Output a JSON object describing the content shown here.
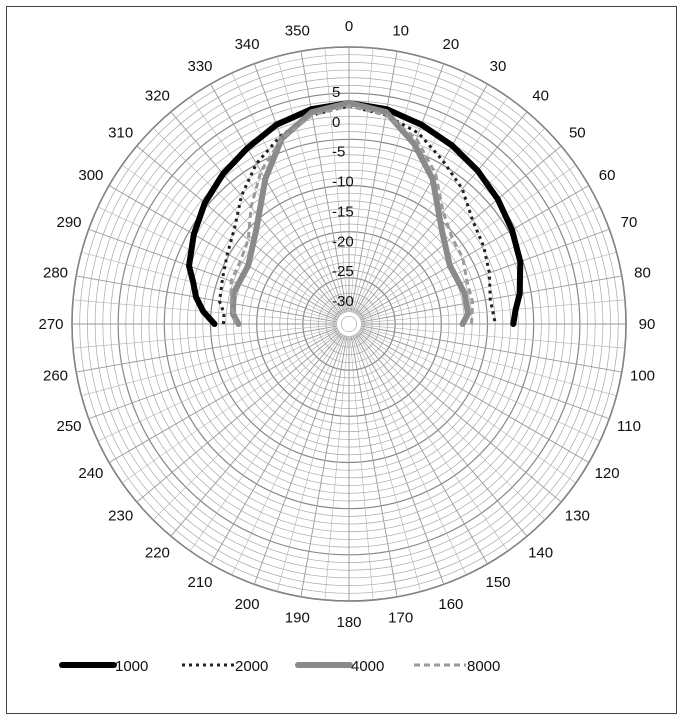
{
  "chart_data": {
    "type": "polar-line",
    "theta_unit": "degrees",
    "theta_direction": "clockwise",
    "theta_zero": "top",
    "theta_ticks": [
      "0",
      "10",
      "20",
      "30",
      "40",
      "50",
      "60",
      "70",
      "80",
      "90",
      "100",
      "110",
      "120",
      "130",
      "140",
      "150",
      "160",
      "170",
      "180",
      "190",
      "200",
      "210",
      "220",
      "230",
      "240",
      "250",
      "260",
      "270",
      "280",
      "290",
      "300",
      "310",
      "320",
      "330",
      "340",
      "350"
    ],
    "r_ticks": [
      "5",
      "0",
      "-5",
      "-10",
      "-15",
      "-20",
      "-25",
      "-30"
    ],
    "r_range": [
      -30,
      5
    ],
    "grid": true,
    "legend_position": "bottom",
    "series": [
      {
        "name": "1000",
        "color": "#000000",
        "style": "solid-thick",
        "points": [
          [
            270,
            -11.5
          ],
          [
            275,
            -9.5
          ],
          [
            280,
            -8
          ],
          [
            285,
            -7
          ],
          [
            290,
            -5.5
          ],
          [
            300,
            -4
          ],
          [
            310,
            -2.5
          ],
          [
            320,
            -1.2
          ],
          [
            330,
            0
          ],
          [
            340,
            1.5
          ],
          [
            350,
            2.5
          ],
          [
            0,
            3
          ],
          [
            10,
            2.5
          ],
          [
            20,
            1.5
          ],
          [
            30,
            0.5
          ],
          [
            40,
            -0.5
          ],
          [
            50,
            -1.5
          ],
          [
            60,
            -2.5
          ],
          [
            70,
            -3.5
          ],
          [
            80,
            -5
          ],
          [
            85,
            -6
          ],
          [
            90,
            -6.5
          ]
        ]
      },
      {
        "name": "2000",
        "color": "#222222",
        "style": "dotted",
        "points": [
          [
            270,
            -13
          ],
          [
            275,
            -13
          ],
          [
            280,
            -12
          ],
          [
            290,
            -11.5
          ],
          [
            300,
            -10.5
          ],
          [
            310,
            -9
          ],
          [
            320,
            -6
          ],
          [
            330,
            -3
          ],
          [
            340,
            -0.5
          ],
          [
            350,
            1.5
          ],
          [
            0,
            2.5
          ],
          [
            10,
            1.5
          ],
          [
            20,
            0
          ],
          [
            30,
            -2.5
          ],
          [
            40,
            -4.5
          ],
          [
            50,
            -7
          ],
          [
            60,
            -8
          ],
          [
            70,
            -9
          ],
          [
            80,
            -10
          ],
          [
            90,
            -9.5
          ]
        ]
      },
      {
        "name": "4000",
        "color": "#8a8a8a",
        "style": "solid-thick",
        "points": [
          [
            270,
            -15.5
          ],
          [
            275,
            -14.5
          ],
          [
            285,
            -14
          ],
          [
            300,
            -14.5
          ],
          [
            315,
            -12
          ],
          [
            330,
            -6
          ],
          [
            340,
            -1
          ],
          [
            350,
            2
          ],
          [
            0,
            3
          ],
          [
            10,
            2
          ],
          [
            20,
            -2
          ],
          [
            30,
            -6
          ],
          [
            45,
            -12
          ],
          [
            60,
            -14.5
          ],
          [
            75,
            -14
          ],
          [
            85,
            -14
          ],
          [
            90,
            -15
          ]
        ]
      },
      {
        "name": "8000",
        "color": "#9a9a9a",
        "style": "dashed",
        "points": [
          [
            270,
            -15
          ],
          [
            280,
            -14
          ],
          [
            290,
            -13
          ],
          [
            300,
            -13
          ],
          [
            310,
            -12
          ],
          [
            320,
            -8.5
          ],
          [
            330,
            -4.5
          ],
          [
            340,
            -1
          ],
          [
            350,
            1.5
          ],
          [
            0,
            2.5
          ],
          [
            10,
            1.5
          ],
          [
            20,
            -1
          ],
          [
            30,
            -5
          ],
          [
            40,
            -9.5
          ],
          [
            50,
            -11.5
          ],
          [
            60,
            -12
          ],
          [
            70,
            -13
          ],
          [
            80,
            -13
          ],
          [
            90,
            -13.5
          ]
        ]
      }
    ]
  }
}
